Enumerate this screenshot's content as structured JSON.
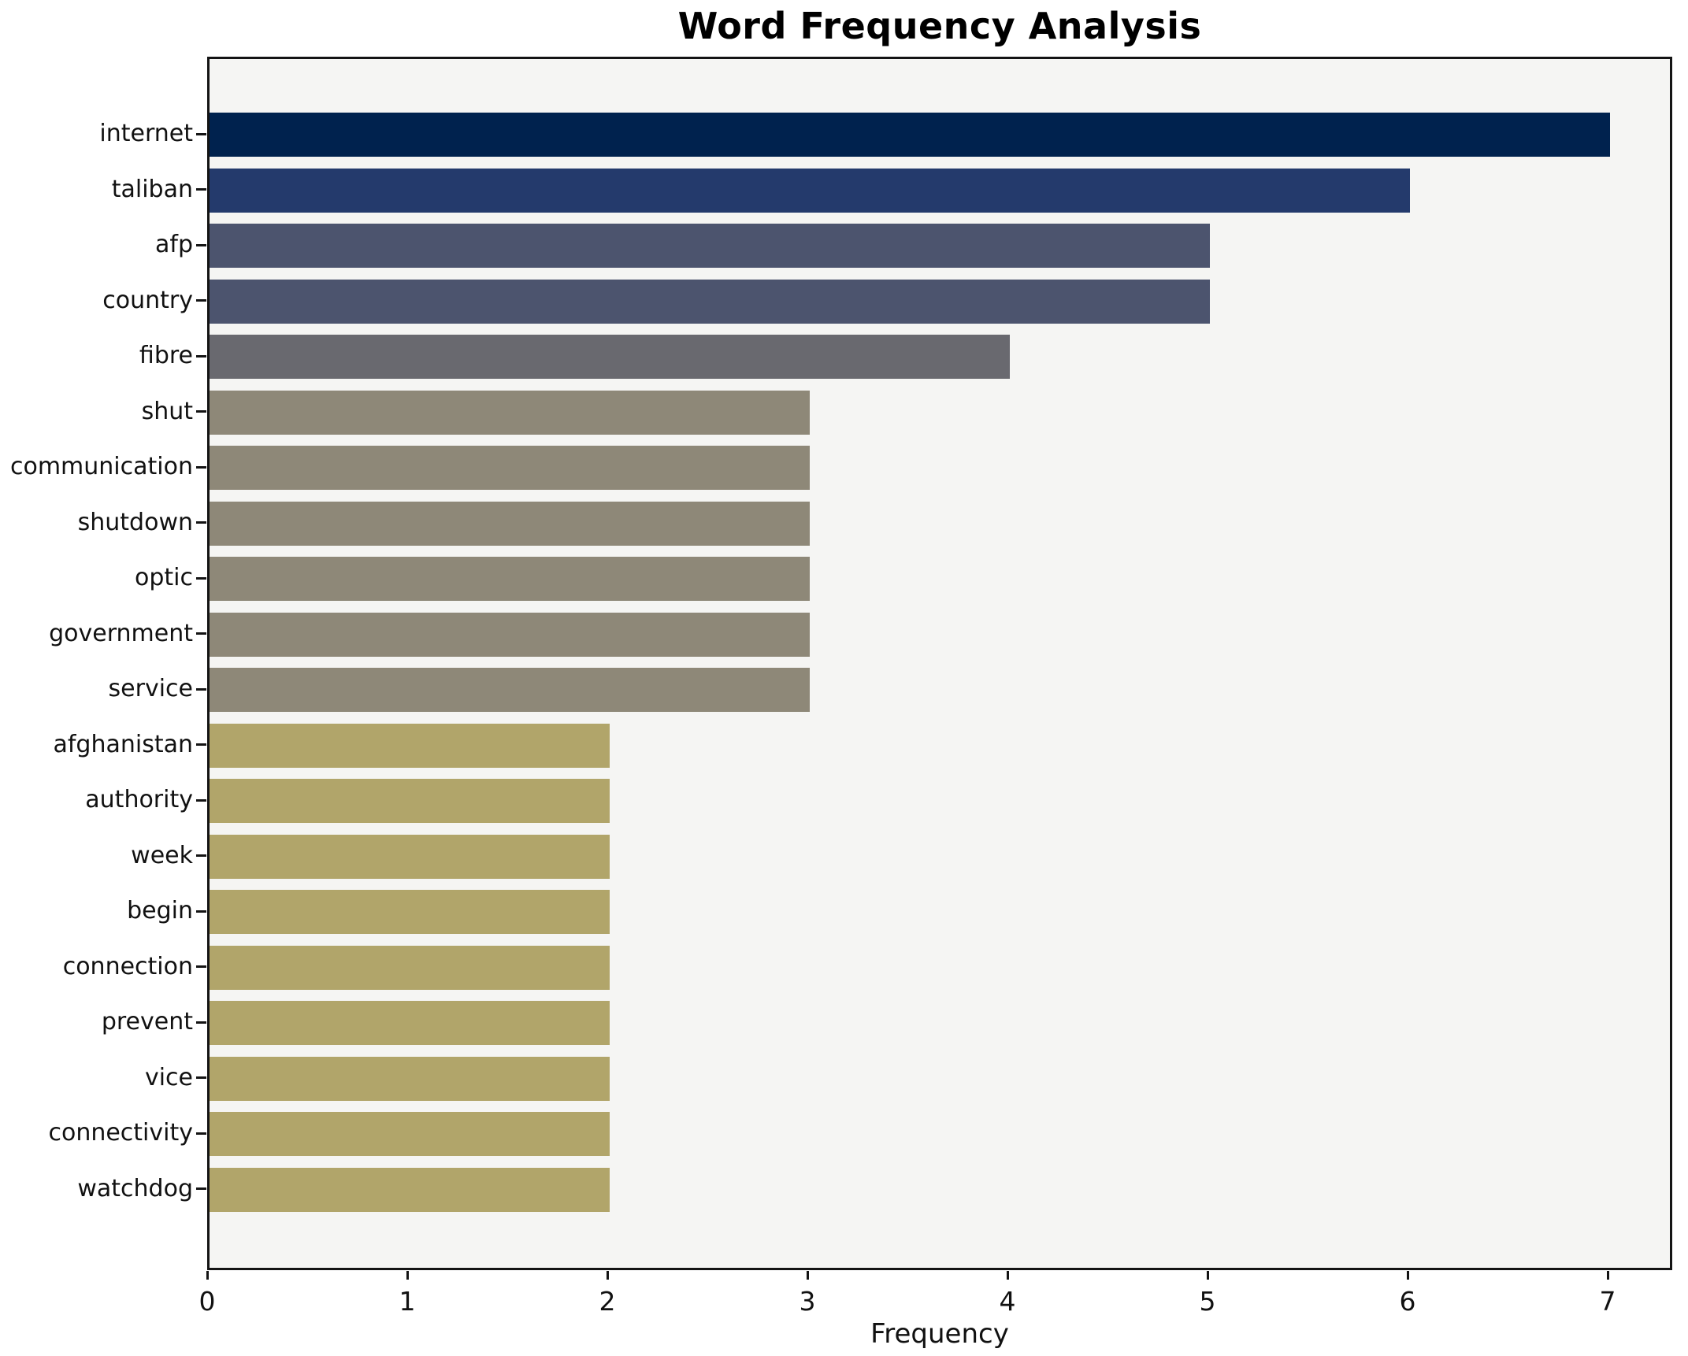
{
  "chart_data": {
    "type": "bar",
    "orientation": "horizontal",
    "title": "Word Frequency Analysis",
    "xlabel": "Frequency",
    "ylabel": "",
    "xlim": [
      0,
      7.35
    ],
    "grid": false,
    "legend": false,
    "x_ticks": [
      "0",
      "1",
      "2",
      "3",
      "4",
      "5",
      "6",
      "7"
    ],
    "categories": [
      "internet",
      "taliban",
      "afp",
      "country",
      "fibre",
      "shut",
      "communication",
      "shutdown",
      "optic",
      "government",
      "service",
      "afghanistan",
      "authority",
      "week",
      "begin",
      "connection",
      "prevent",
      "vice",
      "connectivity",
      "watchdog"
    ],
    "values": [
      7,
      6,
      5,
      5,
      4,
      3,
      3,
      3,
      3,
      3,
      3,
      2,
      2,
      2,
      2,
      2,
      2,
      2,
      2,
      2
    ],
    "bar_colors": [
      "#00224e",
      "#243a6c",
      "#4c546e",
      "#4c546e",
      "#69696f",
      "#8e8878",
      "#8e8878",
      "#8e8878",
      "#8e8878",
      "#8e8878",
      "#8e8878",
      "#b1a56a",
      "#b1a56a",
      "#b1a56a",
      "#b1a56a",
      "#b1a56a",
      "#b1a56a",
      "#b1a56a",
      "#b1a56a",
      "#b1a56a"
    ],
    "plot_background": "#f5f5f3",
    "figure_background": "#ffffff",
    "spine_color": "#141414"
  }
}
